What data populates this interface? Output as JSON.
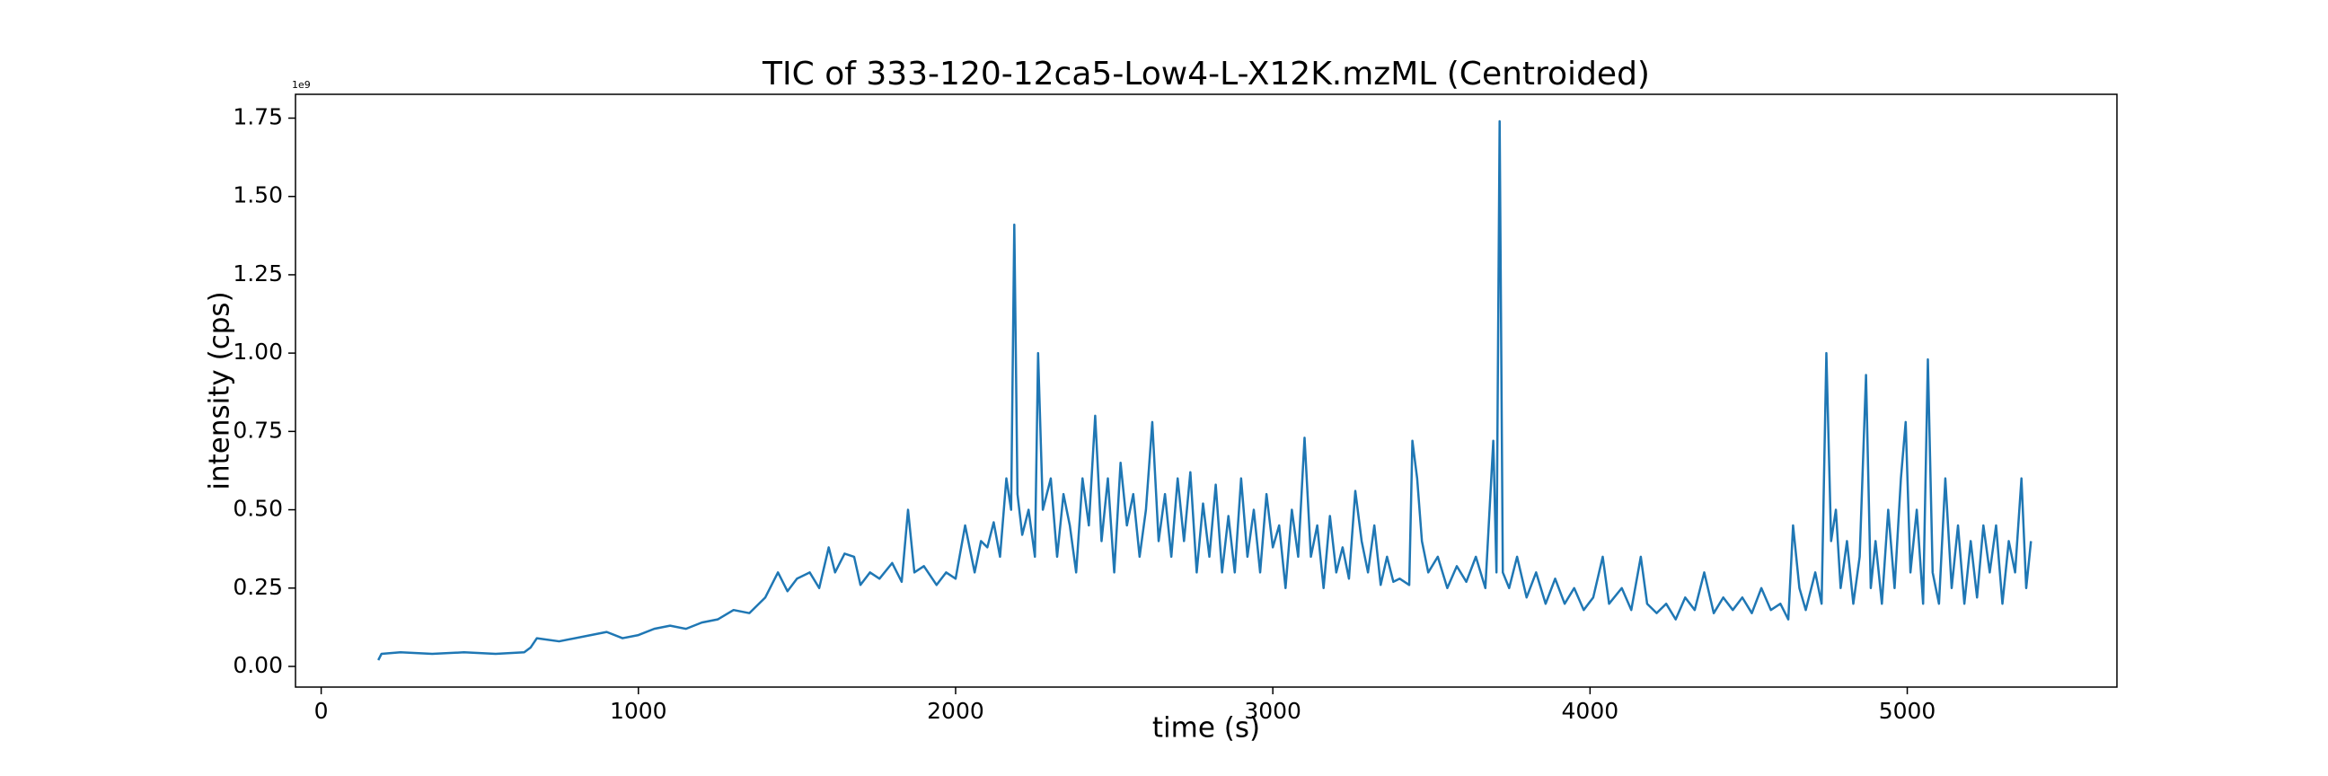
{
  "chart_data": {
    "type": "line",
    "title": "TIC of 333-120-12ca5-Low4-L-X12K.mzML (Centroided)",
    "x_label": "time (s)",
    "y_label": "intensity (cps)",
    "y_offset_label": "1e9",
    "color": "#1f77b4",
    "xlim": [
      -81,
      5661
    ],
    "ylim": [
      -0.066,
      1.826
    ],
    "xticks": [
      0,
      1000,
      2000,
      3000,
      4000,
      5000
    ],
    "yticks": [
      {
        "value": 0,
        "label": "0.00"
      },
      0.25,
      {
        "value": 0.5,
        "label": "0.50"
      },
      0.75,
      {
        "value": 1,
        "label": "1.00"
      },
      1.25,
      {
        "value": 1.5,
        "label": "1.50"
      },
      1.75
    ],
    "x": [
      180,
      190,
      250,
      350,
      450,
      550,
      640,
      660,
      680,
      750,
      850,
      900,
      950,
      1000,
      1050,
      1100,
      1150,
      1200,
      1250,
      1300,
      1350,
      1400,
      1440,
      1470,
      1500,
      1540,
      1570,
      1600,
      1620,
      1650,
      1680,
      1700,
      1730,
      1760,
      1800,
      1830,
      1850,
      1870,
      1900,
      1940,
      1970,
      2000,
      2030,
      2060,
      2080,
      2100,
      2120,
      2140,
      2160,
      2175,
      2185,
      2195,
      2210,
      2230,
      2250,
      2260,
      2275,
      2300,
      2320,
      2340,
      2360,
      2380,
      2400,
      2420,
      2440,
      2460,
      2480,
      2500,
      2520,
      2540,
      2560,
      2580,
      2600,
      2620,
      2640,
      2660,
      2680,
      2700,
      2720,
      2740,
      2760,
      2780,
      2800,
      2820,
      2840,
      2860,
      2880,
      2900,
      2920,
      2940,
      2960,
      2980,
      3000,
      3020,
      3040,
      3060,
      3080,
      3100,
      3120,
      3140,
      3160,
      3180,
      3200,
      3220,
      3240,
      3260,
      3280,
      3300,
      3320,
      3340,
      3360,
      3380,
      3400,
      3430,
      3440,
      3455,
      3470,
      3490,
      3520,
      3550,
      3580,
      3610,
      3640,
      3670,
      3695,
      3705,
      3715,
      3725,
      3745,
      3770,
      3800,
      3830,
      3860,
      3890,
      3920,
      3950,
      3980,
      4010,
      4040,
      4060,
      4100,
      4130,
      4160,
      4180,
      4210,
      4240,
      4270,
      4300,
      4330,
      4360,
      4390,
      4420,
      4450,
      4480,
      4510,
      4540,
      4570,
      4600,
      4625,
      4640,
      4660,
      4680,
      4710,
      4730,
      4745,
      4760,
      4775,
      4790,
      4810,
      4830,
      4850,
      4870,
      4885,
      4900,
      4920,
      4940,
      4960,
      4980,
      4995,
      5010,
      5030,
      5050,
      5065,
      5080,
      5100,
      5120,
      5140,
      5160,
      5180,
      5200,
      5220,
      5240,
      5260,
      5280,
      5300,
      5320,
      5340,
      5360,
      5375,
      5390
    ],
    "values": [
      0.02,
      0.04,
      0.045,
      0.04,
      0.045,
      0.04,
      0.045,
      0.06,
      0.09,
      0.08,
      0.1,
      0.11,
      0.09,
      0.1,
      0.12,
      0.13,
      0.12,
      0.14,
      0.15,
      0.18,
      0.17,
      0.22,
      0.3,
      0.24,
      0.28,
      0.3,
      0.25,
      0.38,
      0.3,
      0.36,
      0.35,
      0.26,
      0.3,
      0.28,
      0.33,
      0.27,
      0.5,
      0.3,
      0.32,
      0.26,
      0.3,
      0.28,
      0.45,
      0.3,
      0.4,
      0.38,
      0.46,
      0.35,
      0.6,
      0.5,
      1.41,
      0.55,
      0.42,
      0.5,
      0.35,
      1.0,
      0.5,
      0.6,
      0.35,
      0.55,
      0.45,
      0.3,
      0.6,
      0.45,
      0.8,
      0.4,
      0.6,
      0.3,
      0.65,
      0.45,
      0.55,
      0.35,
      0.5,
      0.78,
      0.4,
      0.55,
      0.35,
      0.6,
      0.4,
      0.62,
      0.3,
      0.52,
      0.35,
      0.58,
      0.3,
      0.48,
      0.3,
      0.6,
      0.35,
      0.5,
      0.3,
      0.55,
      0.38,
      0.45,
      0.25,
      0.5,
      0.35,
      0.73,
      0.35,
      0.45,
      0.25,
      0.48,
      0.3,
      0.38,
      0.28,
      0.56,
      0.4,
      0.3,
      0.45,
      0.26,
      0.35,
      0.27,
      0.28,
      0.26,
      0.72,
      0.6,
      0.4,
      0.3,
      0.35,
      0.25,
      0.32,
      0.27,
      0.35,
      0.25,
      0.72,
      0.3,
      1.74,
      0.3,
      0.25,
      0.35,
      0.22,
      0.3,
      0.2,
      0.28,
      0.2,
      0.25,
      0.18,
      0.22,
      0.35,
      0.2,
      0.25,
      0.18,
      0.35,
      0.2,
      0.17,
      0.2,
      0.15,
      0.22,
      0.18,
      0.3,
      0.17,
      0.22,
      0.18,
      0.22,
      0.17,
      0.25,
      0.18,
      0.2,
      0.15,
      0.45,
      0.25,
      0.18,
      0.3,
      0.2,
      1.0,
      0.4,
      0.5,
      0.25,
      0.4,
      0.2,
      0.35,
      0.93,
      0.25,
      0.4,
      0.2,
      0.5,
      0.25,
      0.6,
      0.78,
      0.3,
      0.5,
      0.2,
      0.98,
      0.3,
      0.2,
      0.6,
      0.25,
      0.45,
      0.2,
      0.4,
      0.22,
      0.45,
      0.3,
      0.45,
      0.2,
      0.4,
      0.3,
      0.6,
      0.25,
      0.4
    ]
  }
}
